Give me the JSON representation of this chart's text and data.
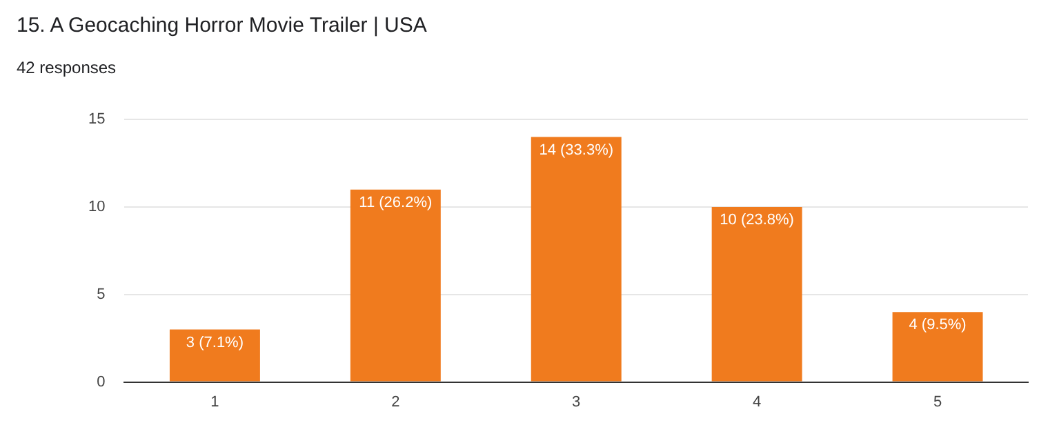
{
  "chart_data": {
    "type": "bar",
    "title": "15. A Geocaching Horror Movie Trailer | USA",
    "subtitle": "42 responses",
    "categories": [
      "1",
      "2",
      "3",
      "4",
      "5"
    ],
    "values": [
      3,
      11,
      14,
      10,
      4
    ],
    "value_labels": [
      "3 (7.1%)",
      "11 (26.2%)",
      "14 (33.3%)",
      "10 (23.8%)",
      "4 (9.5%)"
    ],
    "color": "#f07b1e",
    "ylim": [
      0,
      15
    ],
    "yticks": [
      0,
      5,
      10,
      15
    ],
    "grid": "y"
  }
}
